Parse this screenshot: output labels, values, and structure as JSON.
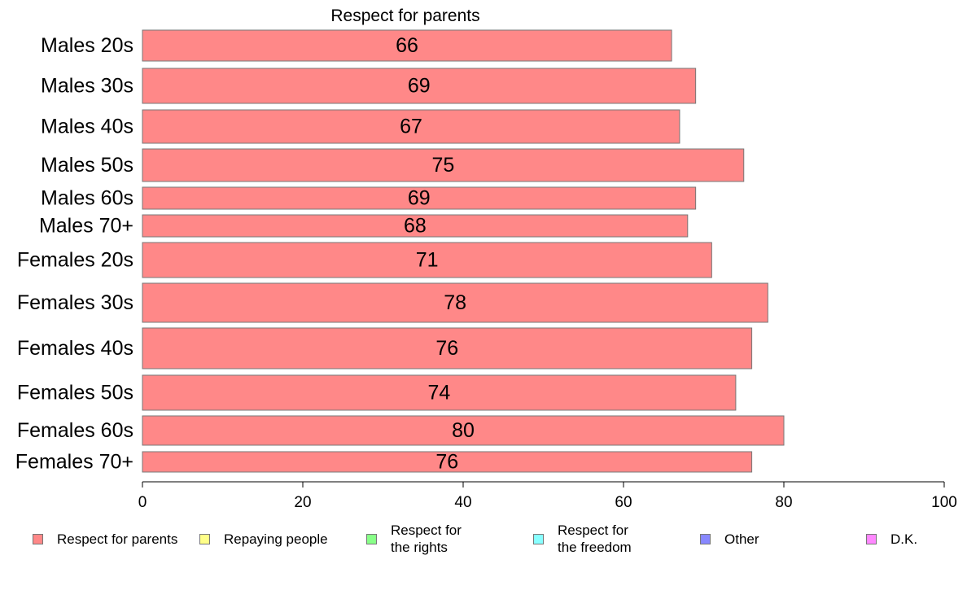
{
  "chart_data": {
    "type": "bar",
    "orientation": "horizontal",
    "title": "Respect for parents",
    "categories": [
      "Males 20s",
      "Males 30s",
      "Males 40s",
      "Males 50s",
      "Males 60s",
      "Males 70+",
      "Females 20s",
      "Females 30s",
      "Females 40s",
      "Females 50s",
      "Females 60s",
      "Females 70+"
    ],
    "values": [
      66,
      69,
      67,
      75,
      69,
      68,
      71,
      78,
      76,
      74,
      80,
      76
    ],
    "data_labels": [
      "66",
      "69",
      "67",
      "75",
      "69",
      "68",
      "71",
      "78",
      "76",
      "74",
      "80",
      "76"
    ],
    "xlim": [
      0,
      100
    ],
    "xticks": [
      0,
      20,
      40,
      60,
      80,
      100
    ],
    "xtick_labels": [
      "0",
      "20",
      "40",
      "60",
      "80",
      "100"
    ],
    "bar_color": "#ff8888",
    "bar_edge_color": "#777777",
    "grid": false,
    "legend_position": "bottom",
    "legend": [
      {
        "label": "Respect for parents",
        "color": "#ff8888"
      },
      {
        "label": "Repaying people",
        "color": "#ffff88"
      },
      {
        "label": "Respect for\nthe rights",
        "color": "#88ff88"
      },
      {
        "label": "Respect for\nthe freedom",
        "color": "#88ffff"
      },
      {
        "label": "Other",
        "color": "#8888ff"
      },
      {
        "label": "D.K.",
        "color": "#ff88ff"
      }
    ]
  }
}
